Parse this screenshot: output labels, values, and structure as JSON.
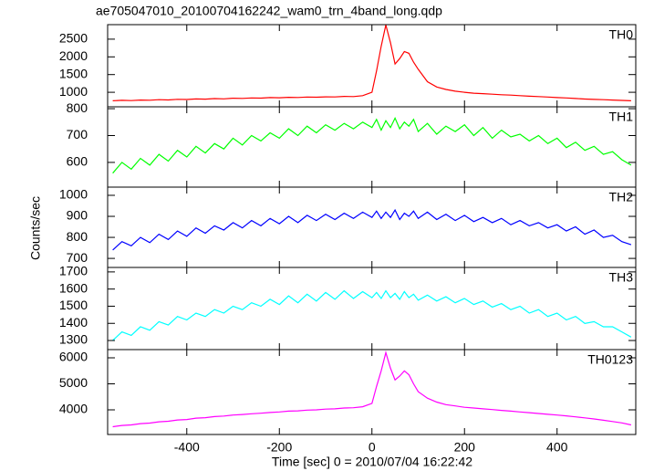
{
  "title": "ae705047010_20100704162242_wam0_trn_4band_long.qdp",
  "x_label": "Time [sec] 0 = 2010/07/04 16:22:42",
  "y_label": "Counts/sec",
  "xlim": [
    -571,
    570
  ],
  "xticks": [
    -400,
    -200,
    0,
    200,
    400
  ],
  "x": [
    -560,
    -540,
    -520,
    -500,
    -480,
    -460,
    -440,
    -420,
    -400,
    -380,
    -360,
    -340,
    -320,
    -300,
    -280,
    -260,
    -240,
    -220,
    -200,
    -180,
    -160,
    -140,
    -120,
    -100,
    -80,
    -60,
    -40,
    -20,
    0,
    10,
    20,
    30,
    40,
    50,
    60,
    70,
    80,
    90,
    100,
    120,
    140,
    160,
    180,
    200,
    220,
    240,
    260,
    280,
    300,
    320,
    340,
    360,
    380,
    400,
    420,
    440,
    460,
    480,
    500,
    520,
    540,
    560
  ],
  "chart_data": [
    {
      "type": "line",
      "label": "TH0",
      "color": "#ff0000",
      "ylim": [
        590,
        2910
      ],
      "yticks": [
        1000,
        1500,
        2000,
        2500
      ],
      "values": [
        760,
        772,
        765,
        781,
        776,
        790,
        784,
        801,
        796,
        812,
        806,
        821,
        815,
        832,
        826,
        841,
        836,
        851,
        846,
        857,
        852,
        866,
        861,
        872,
        868,
        884,
        880,
        905,
        1000,
        1600,
        2300,
        2900,
        2400,
        1800,
        1950,
        2150,
        2100,
        1850,
        1650,
        1300,
        1150,
        1080,
        1030,
        1000,
        975,
        960,
        945,
        930,
        920,
        905,
        890,
        880,
        865,
        850,
        840,
        825,
        810,
        800,
        790,
        780,
        770,
        760
      ]
    },
    {
      "type": "line",
      "label": "TH1",
      "color": "#00ff00",
      "ylim": [
        508,
        807
      ],
      "yticks": [
        600,
        700,
        800
      ],
      "values": [
        560,
        600,
        575,
        615,
        590,
        630,
        605,
        645,
        620,
        660,
        635,
        670,
        650,
        690,
        665,
        700,
        680,
        710,
        690,
        725,
        700,
        735,
        710,
        740,
        720,
        745,
        725,
        750,
        730,
        760,
        720,
        755,
        730,
        765,
        725,
        750,
        735,
        760,
        715,
        745,
        705,
        735,
        715,
        740,
        700,
        730,
        690,
        720,
        695,
        705,
        680,
        700,
        670,
        690,
        655,
        675,
        645,
        660,
        630,
        640,
        610,
        590
      ]
    },
    {
      "type": "line",
      "label": "TH2",
      "color": "#0000ff",
      "ylim": [
        657,
        1039
      ],
      "yticks": [
        700,
        800,
        900,
        1000
      ],
      "values": [
        740,
        780,
        760,
        800,
        775,
        815,
        790,
        830,
        805,
        845,
        820,
        855,
        835,
        870,
        845,
        880,
        855,
        890,
        865,
        900,
        870,
        905,
        880,
        910,
        885,
        915,
        890,
        920,
        895,
        925,
        890,
        920,
        895,
        930,
        885,
        915,
        900,
        925,
        890,
        920,
        885,
        910,
        880,
        905,
        875,
        895,
        870,
        890,
        860,
        880,
        855,
        870,
        845,
        860,
        830,
        850,
        815,
        835,
        800,
        810,
        780,
        765
      ]
    },
    {
      "type": "line",
      "label": "TH3",
      "color": "#00ffff",
      "ylim": [
        1247,
        1726
      ],
      "yticks": [
        1300,
        1400,
        1500,
        1600,
        1700
      ],
      "values": [
        1300,
        1350,
        1330,
        1380,
        1360,
        1410,
        1390,
        1440,
        1420,
        1460,
        1440,
        1480,
        1460,
        1500,
        1480,
        1520,
        1500,
        1540,
        1510,
        1560,
        1520,
        1570,
        1530,
        1580,
        1540,
        1590,
        1545,
        1585,
        1550,
        1580,
        1545,
        1590,
        1550,
        1575,
        1540,
        1585,
        1550,
        1570,
        1535,
        1565,
        1530,
        1555,
        1520,
        1545,
        1510,
        1530,
        1495,
        1515,
        1480,
        1500,
        1460,
        1480,
        1440,
        1460,
        1420,
        1440,
        1400,
        1410,
        1380,
        1380,
        1350,
        1320
      ]
    },
    {
      "type": "line",
      "label": "TH0123",
      "color": "#ff00ff",
      "ylim": [
        3053,
        6316
      ],
      "yticks": [
        4000,
        5000,
        6000
      ],
      "values": [
        3350,
        3400,
        3420,
        3470,
        3490,
        3540,
        3560,
        3610,
        3630,
        3680,
        3700,
        3740,
        3760,
        3800,
        3820,
        3850,
        3870,
        3900,
        3920,
        3950,
        3960,
        3990,
        4000,
        4030,
        4040,
        4070,
        4080,
        4120,
        4250,
        4900,
        5500,
        6200,
        5600,
        5150,
        5300,
        5500,
        5350,
        5000,
        4700,
        4450,
        4300,
        4200,
        4150,
        4100,
        4070,
        4040,
        4010,
        3980,
        3950,
        3920,
        3890,
        3860,
        3830,
        3800,
        3770,
        3730,
        3690,
        3650,
        3600,
        3550,
        3500,
        3420
      ]
    }
  ]
}
